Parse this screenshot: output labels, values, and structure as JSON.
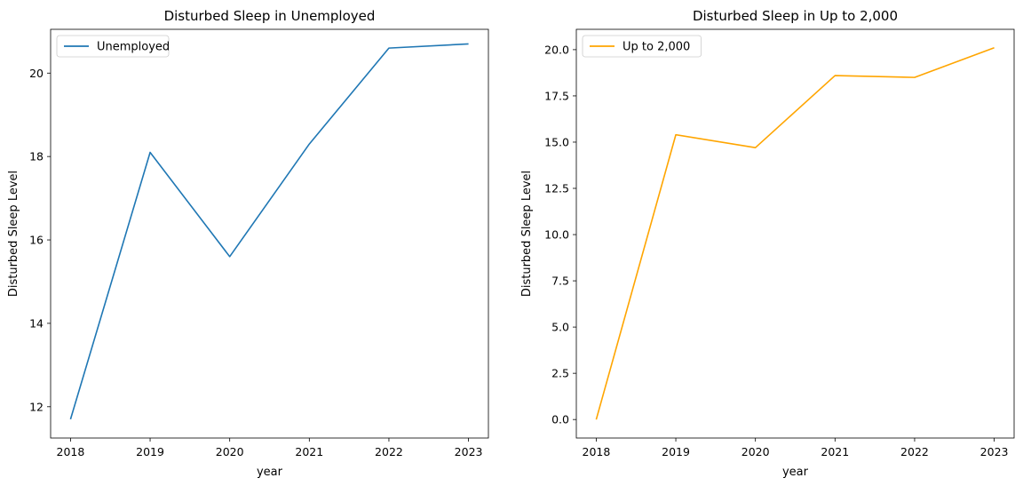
{
  "chart_data": [
    {
      "type": "line",
      "title": "Disturbed Sleep in Unemployed",
      "xlabel": "year",
      "ylabel": "Disturbed Sleep Level",
      "x": [
        2018,
        2019,
        2020,
        2021,
        2022,
        2023
      ],
      "x_ticks": [
        "2018",
        "2019",
        "2020",
        "2021",
        "2022",
        "2023"
      ],
      "y_ticks": [
        "12",
        "14",
        "16",
        "18",
        "20"
      ],
      "ylim": [
        11.25,
        21.05
      ],
      "legend": "upper-left",
      "grid": false,
      "series": [
        {
          "name": "Unemployed",
          "color": "#1f77b4",
          "values": [
            11.7,
            18.1,
            15.6,
            18.3,
            20.6,
            20.7
          ]
        }
      ]
    },
    {
      "type": "line",
      "title": "Disturbed Sleep in Up to 2,000",
      "xlabel": "year",
      "ylabel": "Disturbed Sleep Level",
      "x": [
        2018,
        2019,
        2020,
        2021,
        2022,
        2023
      ],
      "x_ticks": [
        "2018",
        "2019",
        "2020",
        "2021",
        "2022",
        "2023"
      ],
      "y_ticks": [
        "0.0",
        "2.5",
        "5.0",
        "7.5",
        "10.0",
        "12.5",
        "15.0",
        "17.5",
        "20.0"
      ],
      "ylim": [
        -1.0,
        21.1
      ],
      "legend": "upper-left",
      "grid": false,
      "series": [
        {
          "name": "Up to 2,000",
          "color": "#ffa500",
          "values": [
            0.0,
            15.4,
            14.7,
            18.6,
            18.5,
            20.1
          ]
        }
      ]
    }
  ]
}
